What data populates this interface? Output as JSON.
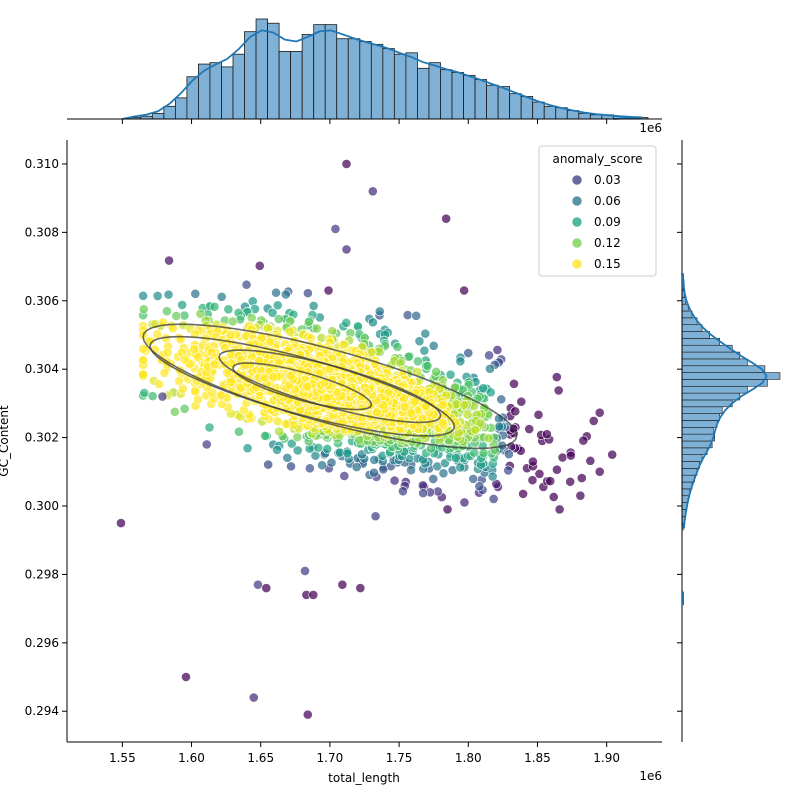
{
  "chart_data": {
    "type": "scatter",
    "xlabel": "total_length",
    "ylabel": "GC_Content",
    "x_offset_text": "1e6",
    "xlim": [
      1.51,
      1.94
    ],
    "ylim": [
      0.2931,
      0.3107
    ],
    "x_ticks": [
      "1.55",
      "1.60",
      "1.65",
      "1.70",
      "1.75",
      "1.80",
      "1.85",
      "1.90"
    ],
    "y_ticks": [
      "0.294",
      "0.296",
      "0.298",
      "0.300",
      "0.302",
      "0.304",
      "0.306",
      "0.308",
      "0.310"
    ],
    "grid": false,
    "legend": {
      "title": "anomaly_score",
      "placement": "top-right",
      "entries": [
        {
          "label": "0.03",
          "color": "#414487"
        },
        {
          "label": "0.06",
          "color": "#2a788e"
        },
        {
          "label": "0.09",
          "color": "#22a884"
        },
        {
          "label": "0.12",
          "color": "#7ad151"
        },
        {
          "label": "0.15",
          "color": "#fde725"
        }
      ]
    },
    "colormap": "viridis",
    "point_color_range": [
      0.0,
      0.16
    ],
    "outliers": [
      {
        "x": 1.549,
        "y": 0.2995,
        "score": 0.0
      },
      {
        "x": 1.596,
        "y": 0.295,
        "score": 0.0
      },
      {
        "x": 1.645,
        "y": 0.2944,
        "score": 0.02
      },
      {
        "x": 1.684,
        "y": 0.2939,
        "score": 0.0
      },
      {
        "x": 1.648,
        "y": 0.2977,
        "score": 0.03
      },
      {
        "x": 1.654,
        "y": 0.2976,
        "score": 0.0
      },
      {
        "x": 1.682,
        "y": 0.2981,
        "score": 0.03
      },
      {
        "x": 1.683,
        "y": 0.2974,
        "score": 0.0
      },
      {
        "x": 1.688,
        "y": 0.2974,
        "score": 0.0
      },
      {
        "x": 1.709,
        "y": 0.2977,
        "score": 0.0
      },
      {
        "x": 1.722,
        "y": 0.2976,
        "score": 0.0
      },
      {
        "x": 1.712,
        "y": 0.31,
        "score": 0.0
      },
      {
        "x": 1.731,
        "y": 0.3092,
        "score": 0.02
      },
      {
        "x": 1.784,
        "y": 0.3084,
        "score": 0.0
      },
      {
        "x": 1.704,
        "y": 0.3081,
        "score": 0.03
      },
      {
        "x": 1.712,
        "y": 0.3075,
        "score": 0.02
      },
      {
        "x": 1.699,
        "y": 0.3063,
        "score": 0.0
      },
      {
        "x": 1.797,
        "y": 0.3063,
        "score": 0.0
      },
      {
        "x": 1.904,
        "y": 0.3015,
        "score": 0.0
      },
      {
        "x": 1.881,
        "y": 0.3003,
        "score": 0.0
      },
      {
        "x": 1.866,
        "y": 0.2999,
        "score": 0.0
      },
      {
        "x": 1.785,
        "y": 0.2999,
        "score": 0.0
      },
      {
        "x": 1.733,
        "y": 0.2997,
        "score": 0.03
      },
      {
        "x": 1.579,
        "y": 0.3032,
        "score": 0.03
      },
      {
        "x": 1.611,
        "y": 0.3018,
        "score": 0.03
      }
    ],
    "cluster": {
      "center": [
        1.71,
        0.3033
      ],
      "sd_x": 0.062,
      "sd_y": 0.00088,
      "slope": -1.07e-05,
      "x_range": [
        1.565,
        1.895
      ],
      "count": 2000
    },
    "marginal_x": {
      "bin_start": 1.555,
      "bin_width": 0.00833,
      "counts": [
        1,
        2,
        4,
        9,
        15,
        30,
        39,
        40,
        37,
        46,
        62,
        71,
        68,
        48,
        48,
        60,
        67,
        67,
        57,
        57,
        55,
        53,
        50,
        46,
        47,
        36,
        40,
        35,
        33,
        31,
        28,
        24,
        23,
        18,
        16,
        12,
        9,
        8,
        6,
        4,
        3,
        3,
        2,
        1,
        1
      ]
    },
    "marginal_y": {
      "bin_start": 0.2993,
      "bin_width": 0.0002,
      "counts": [
        1,
        2,
        3,
        4,
        5,
        6,
        8,
        10,
        12,
        14,
        16,
        20,
        24,
        26,
        25,
        28,
        30,
        32,
        40,
        46,
        52,
        68,
        78,
        66,
        52,
        46,
        40,
        30,
        22,
        16,
        12,
        8,
        5,
        3,
        2,
        1,
        1
      ]
    }
  }
}
